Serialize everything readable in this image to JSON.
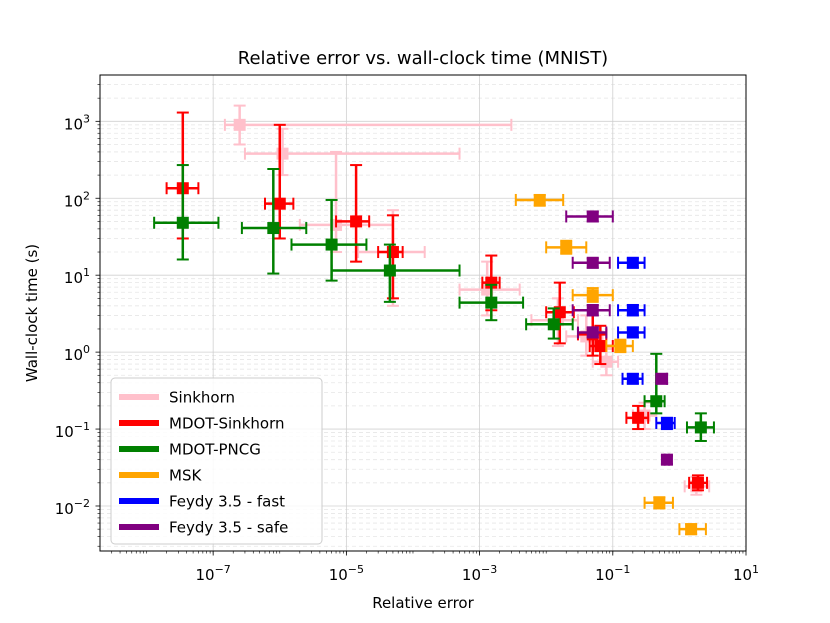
{
  "chart_data": {
    "type": "scatter",
    "title": "Relative error vs. wall-clock time (MNIST)",
    "xlabel": "Relative error",
    "ylabel": "Wall-clock time (s)",
    "xscale": "log",
    "yscale": "log",
    "xlim": [
      2e-09,
      10
    ],
    "ylim": [
      0.0026,
      4000
    ],
    "xticks": [
      {
        "value": 1e-07,
        "base": "10",
        "exp": "−7"
      },
      {
        "value": 1e-05,
        "base": "10",
        "exp": "−5"
      },
      {
        "value": 0.001,
        "base": "10",
        "exp": "−3"
      },
      {
        "value": 0.1,
        "base": "10",
        "exp": "−1"
      },
      {
        "value": 10,
        "base": "10",
        "exp": "1"
      }
    ],
    "yticks": [
      {
        "value": 0.01,
        "base": "10",
        "exp": "−2"
      },
      {
        "value": 0.1,
        "base": "10",
        "exp": "−1"
      },
      {
        "value": 1,
        "base": "10",
        "exp": "0"
      },
      {
        "value": 10,
        "base": "10",
        "exp": "1"
      },
      {
        "value": 100,
        "base": "10",
        "exp": "2"
      },
      {
        "value": 1000,
        "base": "10",
        "exp": "3"
      }
    ],
    "grid": true,
    "legend_position": "lower-left",
    "series": [
      {
        "name": "Sinkhorn",
        "color": "#ffc0cb",
        "points": [
          {
            "x": 2.5e-07,
            "y": 900,
            "xerr": [
              1.5e-07,
              0.003
            ],
            "yerr": [
              500,
              1600
            ]
          },
          {
            "x": 1.1e-06,
            "y": 380,
            "xerr": [
              3e-07,
              0.0005
            ],
            "yerr": [
              200,
              800
            ]
          },
          {
            "x": 7e-06,
            "y": 45,
            "xerr": [
              2e-06,
              5e-05
            ],
            "yerr": [
              20,
              400
            ]
          },
          {
            "x": 5e-05,
            "y": 20,
            "xerr": [
              1.5e-05,
              0.00015
            ],
            "yerr": [
              4,
              70
            ]
          },
          {
            "x": 0.0013,
            "y": 6.5,
            "xerr": [
              0.0005,
              0.004
            ],
            "yerr": [
              3,
              15
            ]
          },
          {
            "x": 0.015,
            "y": 2.6,
            "xerr": [
              0.006,
              0.03
            ],
            "yerr": [
              1.2,
              5
            ]
          },
          {
            "x": 0.04,
            "y": 1.6,
            "xerr": [
              0.02,
              0.07
            ],
            "yerr": [
              0.9,
              3
            ]
          },
          {
            "x": 0.08,
            "y": 0.75,
            "xerr": [
              0.05,
              0.12
            ],
            "yerr": [
              0.5,
              1.1
            ]
          },
          {
            "x": 0.3,
            "y": 0.15,
            "xerr": [
              0.2,
              0.45
            ],
            "yerr": [
              0.1,
              0.22
            ]
          },
          {
            "x": 1.8,
            "y": 0.018,
            "xerr": [
              1.2,
              2.8
            ],
            "yerr": [
              0.014,
              0.024
            ]
          }
        ]
      },
      {
        "name": "MDOT-Sinkhorn",
        "color": "#ff0000",
        "points": [
          {
            "x": 3.5e-08,
            "y": 135,
            "xerr": [
              2e-08,
              6e-08
            ],
            "yerr": [
              30,
              1300
            ]
          },
          {
            "x": 1e-06,
            "y": 85,
            "xerr": [
              6e-07,
              1.6e-06
            ],
            "yerr": [
              30,
              900
            ]
          },
          {
            "x": 1.4e-05,
            "y": 50,
            "xerr": [
              7e-06,
              2.2e-05
            ],
            "yerr": [
              15,
              270
            ]
          },
          {
            "x": 5e-05,
            "y": 20,
            "xerr": [
              3e-05,
              7e-05
            ],
            "yerr": [
              5,
              60
            ]
          },
          {
            "x": 0.0015,
            "y": 8,
            "xerr": [
              0.0011,
              0.002
            ],
            "yerr": [
              3.5,
              18
            ]
          },
          {
            "x": 0.016,
            "y": 3.3,
            "xerr": [
              0.01,
              0.026
            ],
            "yerr": [
              1.3,
              8
            ]
          },
          {
            "x": 0.05,
            "y": 1.7,
            "xerr": [
              0.03,
              0.08
            ],
            "yerr": [
              0.9,
              3.5
            ]
          },
          {
            "x": 0.065,
            "y": 1.2,
            "xerr": [
              0.045,
              0.1
            ],
            "yerr": [
              0.7,
              2.2
            ]
          },
          {
            "x": 0.24,
            "y": 0.14,
            "xerr": [
              0.16,
              0.34
            ],
            "yerr": [
              0.1,
              0.2
            ]
          },
          {
            "x": 1.9,
            "y": 0.02,
            "xerr": [
              1.4,
              2.6
            ],
            "yerr": [
              0.016,
              0.025
            ]
          }
        ]
      },
      {
        "name": "MDOT-PNCG",
        "color": "#008000",
        "points": [
          {
            "x": 3.5e-08,
            "y": 48,
            "xerr": [
              1.3e-08,
              1.2e-07
            ],
            "yerr": [
              16,
              270
            ]
          },
          {
            "x": 8e-07,
            "y": 41,
            "xerr": [
              2.7e-07,
              2.5e-06
            ],
            "yerr": [
              10.5,
              240
            ]
          },
          {
            "x": 6e-06,
            "y": 25,
            "xerr": [
              1.5e-06,
              2e-05
            ],
            "yerr": [
              8.5,
              95
            ]
          },
          {
            "x": 4.5e-05,
            "y": 11.5,
            "xerr": [
              6e-06,
              0.0005
            ],
            "yerr": [
              4.5,
              25
            ]
          },
          {
            "x": 0.0015,
            "y": 4.4,
            "xerr": [
              0.0005,
              0.0045
            ],
            "yerr": [
              2.6,
              7.5
            ]
          },
          {
            "x": 0.013,
            "y": 2.3,
            "xerr": [
              0.005,
              0.025
            ],
            "yerr": [
              1.5,
              3.7
            ]
          },
          {
            "x": 0.45,
            "y": 0.23,
            "xerr": [
              0.3,
              0.6
            ],
            "yerr": [
              0.16,
              0.95
            ]
          },
          {
            "x": 2.1,
            "y": 0.105,
            "xerr": [
              1.3,
              3.3
            ],
            "yerr": [
              0.07,
              0.16
            ]
          }
        ]
      },
      {
        "name": "MSK",
        "color": "#ffa500",
        "points": [
          {
            "x": 0.008,
            "y": 95,
            "xerr": [
              0.0035,
              0.018
            ],
            "yerr": [
              80,
              110
            ]
          },
          {
            "x": 0.02,
            "y": 23,
            "xerr": [
              0.01,
              0.04
            ],
            "yerr": [
              19,
              28
            ]
          },
          {
            "x": 0.05,
            "y": 5.5,
            "xerr": [
              0.025,
              0.1
            ],
            "yerr": [
              4.5,
              6.8
            ]
          },
          {
            "x": 0.13,
            "y": 1.2,
            "xerr": [
              0.08,
              0.2
            ],
            "yerr": [
              1,
              1.45
            ]
          },
          {
            "x": 0.5,
            "y": 0.011,
            "xerr": [
              0.3,
              0.8
            ],
            "yerr": [
              0.0093,
              0.013
            ]
          },
          {
            "x": 1.5,
            "y": 0.005,
            "xerr": [
              1,
              2.5
            ],
            "yerr": [
              0.0043,
              0.0058
            ]
          }
        ]
      },
      {
        "name": "Feydy 3.5 - fast",
        "color": "#0000ff",
        "points": [
          {
            "x": 0.2,
            "y": 14.5,
            "xerr": [
              0.12,
              0.3
            ],
            "yerr": [
              12.5,
              16.5
            ]
          },
          {
            "x": 0.2,
            "y": 3.5,
            "xerr": [
              0.12,
              0.3
            ],
            "yerr": [
              3,
              4.1
            ]
          },
          {
            "x": 0.2,
            "y": 1.8,
            "xerr": [
              0.12,
              0.3
            ],
            "yerr": [
              1.55,
              2.1
            ]
          },
          {
            "x": 0.2,
            "y": 0.45,
            "xerr": [
              0.14,
              0.28
            ],
            "yerr": [
              0.39,
              0.52
            ]
          },
          {
            "x": 0.65,
            "y": 0.12,
            "xerr": [
              0.45,
              0.85
            ],
            "yerr": [
              0.1,
              0.14
            ]
          }
        ]
      },
      {
        "name": "Feydy 3.5 - safe",
        "color": "#800080",
        "points": [
          {
            "x": 0.05,
            "y": 58,
            "xerr": [
              0.02,
              0.1
            ],
            "yerr": [
              50,
              67
            ]
          },
          {
            "x": 0.05,
            "y": 14.5,
            "xerr": [
              0.025,
              0.09
            ],
            "yerr": [
              12.5,
              16.5
            ]
          },
          {
            "x": 0.05,
            "y": 3.5,
            "xerr": [
              0.025,
              0.09
            ],
            "yerr": [
              3,
              4.1
            ]
          },
          {
            "x": 0.05,
            "y": 1.8,
            "xerr": [
              0.03,
              0.08
            ],
            "yerr": [
              1.55,
              2.1
            ]
          },
          {
            "x": 0.55,
            "y": 0.45,
            "xerr": [
              0.45,
              0.65
            ],
            "yerr": [
              0.39,
              0.52
            ]
          },
          {
            "x": 0.65,
            "y": 0.04,
            "xerr": [
              0.6,
              0.7
            ],
            "yerr": [
              0.035,
              0.045
            ]
          }
        ]
      }
    ]
  }
}
